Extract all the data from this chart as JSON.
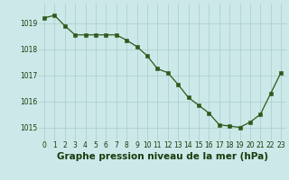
{
  "x": [
    0,
    1,
    2,
    3,
    4,
    5,
    6,
    7,
    8,
    9,
    10,
    11,
    12,
    13,
    14,
    15,
    16,
    17,
    18,
    19,
    20,
    21,
    22,
    23
  ],
  "y": [
    1019.2,
    1019.3,
    1018.9,
    1018.55,
    1018.55,
    1018.55,
    1018.55,
    1018.55,
    1018.35,
    1018.1,
    1017.75,
    1017.25,
    1017.1,
    1016.65,
    1016.15,
    1015.85,
    1015.55,
    1015.1,
    1015.05,
    1015.0,
    1015.2,
    1015.5,
    1016.3,
    1017.1
  ],
  "line_color": "#2d5a1b",
  "marker_color": "#2d5a1b",
  "bg_color": "#cce8e8",
  "grid_color": "#aacccc",
  "xlabel": "Graphe pression niveau de la mer (hPa)",
  "xlabel_color": "#1a3a0a",
  "ylim": [
    1014.5,
    1019.75
  ],
  "yticks": [
    1015,
    1016,
    1017,
    1018,
    1019
  ],
  "xticks": [
    0,
    1,
    2,
    3,
    4,
    5,
    6,
    7,
    8,
    9,
    10,
    11,
    12,
    13,
    14,
    15,
    16,
    17,
    18,
    19,
    20,
    21,
    22,
    23
  ],
  "xtick_labels": [
    "0",
    "1",
    "2",
    "3",
    "4",
    "5",
    "6",
    "7",
    "8",
    "9",
    "10",
    "11",
    "12",
    "13",
    "14",
    "15",
    "16",
    "17",
    "18",
    "19",
    "20",
    "21",
    "22",
    "23"
  ],
  "tick_fontsize": 5.5,
  "xlabel_fontsize": 7.5,
  "marker_size": 2.2,
  "line_width": 0.9
}
